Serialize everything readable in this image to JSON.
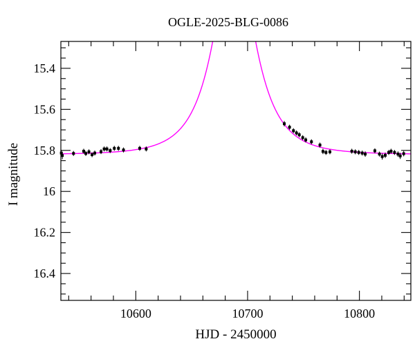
{
  "page": {
    "background_color": "#ffffff"
  },
  "chart_data": {
    "type": "scatter",
    "title": "OGLE-2025-BLG-0086",
    "xlabel": "HJD - 2450000",
    "ylabel": "I magnitude",
    "grid": false,
    "legend": "none",
    "xlim": [
      10533,
      10846
    ],
    "ylim_mag": [
      15.269,
      16.531
    ],
    "y_axis_inverted_magnitudes": true,
    "x_major_ticks": [
      {
        "value": 10600,
        "label": "10600"
      },
      {
        "value": 10700,
        "label": "10700"
      },
      {
        "value": 10800,
        "label": "10800"
      }
    ],
    "x_minor_step": 20,
    "y_major_ticks": [
      {
        "value": 15.4,
        "label": "15.4"
      },
      {
        "value": 15.6,
        "label": "15.6"
      },
      {
        "value": 15.8,
        "label": "15.8"
      },
      {
        "value": 16.0,
        "label": "16"
      },
      {
        "value": 16.2,
        "label": "16.2"
      },
      {
        "value": 16.4,
        "label": "16.4"
      }
    ],
    "y_minor_step": 0.05,
    "axis_color": "#000000",
    "model_curve": {
      "name": "microlensing-model-curve",
      "shape": "paczynski",
      "color": "#ff00ff",
      "t0": 10688,
      "tE_days": 32,
      "u0": 0.38,
      "baseline_I_mag": 15.82,
      "peak_I_mag_approx": 14.76,
      "clipped_at_frame_top": true
    },
    "series": [
      {
        "name": "OGLE I-band photometry",
        "marker": "filled-square",
        "marker_color": "#000000",
        "error_bars": "vertical",
        "points_format": [
          "hjd_minus_2450000",
          "I_mag",
          "I_mag_err"
        ],
        "points": [
          [
            10533.4,
            15.813,
            0.015
          ],
          [
            10534.3,
            15.825,
            0.018
          ],
          [
            10544.3,
            15.815,
            0.012
          ],
          [
            10553.4,
            15.804,
            0.012
          ],
          [
            10555.3,
            15.815,
            0.012
          ],
          [
            10558.1,
            15.807,
            0.012
          ],
          [
            10560.9,
            15.821,
            0.012
          ],
          [
            10563.3,
            15.813,
            0.012
          ],
          [
            10568.9,
            15.806,
            0.012
          ],
          [
            10571.7,
            15.793,
            0.012
          ],
          [
            10574.2,
            15.793,
            0.012
          ],
          [
            10577.1,
            15.801,
            0.012
          ],
          [
            10580.8,
            15.79,
            0.012
          ],
          [
            10584.5,
            15.79,
            0.012
          ],
          [
            10589.0,
            15.798,
            0.012
          ],
          [
            10603.5,
            15.79,
            0.012
          ],
          [
            10609.3,
            15.793,
            0.012
          ],
          [
            10732.8,
            15.67,
            0.013
          ],
          [
            10737.5,
            15.687,
            0.012
          ],
          [
            10741.0,
            15.704,
            0.012
          ],
          [
            10743.7,
            15.715,
            0.012
          ],
          [
            10746.2,
            15.724,
            0.012
          ],
          [
            10749.3,
            15.738,
            0.012
          ],
          [
            10752.0,
            15.749,
            0.012
          ],
          [
            10757.1,
            15.758,
            0.012
          ],
          [
            10764.7,
            15.774,
            0.012
          ],
          [
            10767.4,
            15.805,
            0.013
          ],
          [
            10770.1,
            15.81,
            0.012
          ],
          [
            10773.6,
            15.807,
            0.012
          ],
          [
            10793.2,
            15.804,
            0.012
          ],
          [
            10796.3,
            15.807,
            0.012
          ],
          [
            10799.4,
            15.81,
            0.012
          ],
          [
            10802.5,
            15.813,
            0.012
          ],
          [
            10805.2,
            15.818,
            0.013
          ],
          [
            10813.8,
            15.802,
            0.012
          ],
          [
            10817.9,
            15.818,
            0.012
          ],
          [
            10820.4,
            15.83,
            0.015
          ],
          [
            10823.1,
            15.824,
            0.013
          ],
          [
            10826.2,
            15.81,
            0.012
          ],
          [
            10828.3,
            15.804,
            0.012
          ],
          [
            10831.4,
            15.81,
            0.012
          ],
          [
            10834.5,
            15.818,
            0.013
          ],
          [
            10836.5,
            15.827,
            0.015
          ],
          [
            10839.6,
            15.816,
            0.013
          ]
        ]
      }
    ]
  }
}
